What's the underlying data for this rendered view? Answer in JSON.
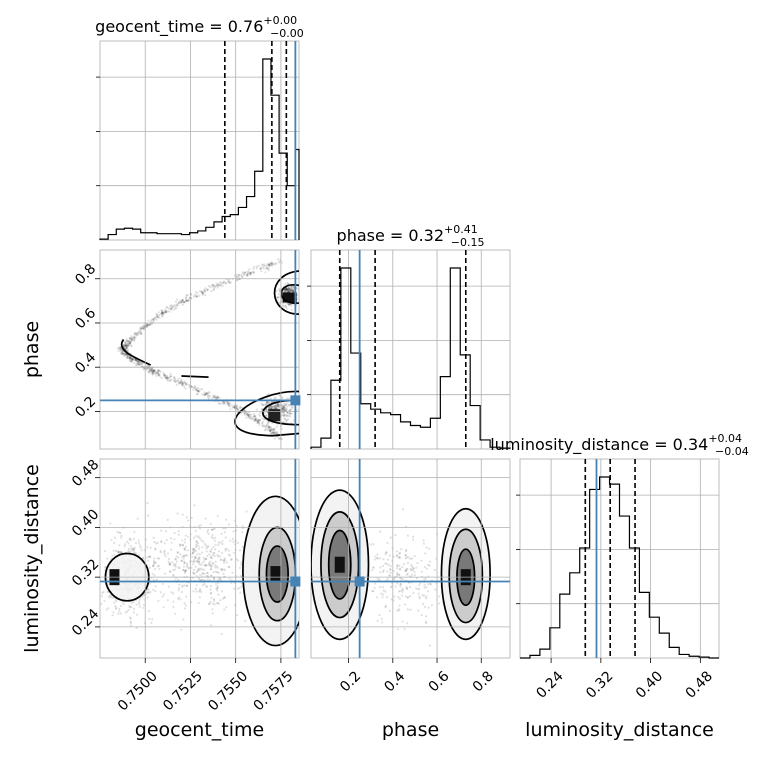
{
  "chart_data": {
    "type": "corner",
    "parameters": [
      {
        "key": "geocent_time",
        "label": "geocent_time",
        "title": "geocent_time = 0.76",
        "title_sup": "+0.00",
        "title_sub": "−0.00",
        "range": [
          0.7475,
          0.7585
        ],
        "ticks": [
          0.75,
          0.7525,
          0.755,
          0.7575
        ],
        "tick_labels": [
          "0.7500",
          "0.7525",
          "0.7550",
          "0.7575"
        ],
        "truth": 0.7583,
        "quantiles": [
          0.7544,
          0.757,
          0.7578
        ]
      },
      {
        "key": "phase",
        "label": "phase",
        "title": "phase = 0.32",
        "title_sup": "+0.41",
        "title_sub": "−0.15",
        "range": [
          0.03,
          0.93
        ],
        "ticks": [
          0.2,
          0.4,
          0.6,
          0.8
        ],
        "tick_labels": [
          "0.2",
          "0.4",
          "0.6",
          "0.8"
        ],
        "truth": 0.25,
        "quantiles": [
          0.16,
          0.32,
          0.73
        ]
      },
      {
        "key": "luminosity_distance",
        "label": "luminosity_distance",
        "title": "luminosity_distance = 0.34",
        "title_sup": "+0.04",
        "title_sub": "−0.04",
        "range": [
          0.19,
          0.51
        ],
        "ticks": [
          0.24,
          0.32,
          0.4,
          0.48
        ],
        "tick_labels": [
          "0.24",
          "0.32",
          "0.40",
          "0.48"
        ],
        "truth": 0.313,
        "quantiles": [
          0.295,
          0.335,
          0.375
        ]
      }
    ],
    "histograms": [
      {
        "param": "geocent_time",
        "edges": [
          0.7475,
          0.74795,
          0.7484,
          0.74885,
          0.7493,
          0.74975,
          0.7502,
          0.75065,
          0.7511,
          0.75155,
          0.752,
          0.75245,
          0.7529,
          0.75335,
          0.7538,
          0.75425,
          0.7547,
          0.75515,
          0.7556,
          0.75605,
          0.7565,
          0.75695,
          0.7574,
          0.75785,
          0.7583,
          0.7585
        ],
        "counts": [
          0.5,
          3,
          6,
          6.5,
          6,
          4,
          4,
          3.5,
          3.5,
          3.5,
          3,
          4,
          5,
          7,
          10,
          13,
          14,
          18,
          24,
          38,
          100,
          80,
          48,
          30,
          50
        ]
      },
      {
        "param": "phase",
        "edges": [
          0.03,
          0.075,
          0.12,
          0.165,
          0.21,
          0.255,
          0.3,
          0.345,
          0.39,
          0.435,
          0.48,
          0.525,
          0.57,
          0.615,
          0.66,
          0.705,
          0.75,
          0.795,
          0.84,
          0.885,
          0.93
        ],
        "counts": [
          1,
          6,
          38,
          100,
          53,
          25,
          22,
          20,
          19,
          15,
          13,
          12,
          17,
          40,
          100,
          52,
          24,
          5,
          1,
          0.5
        ]
      },
      {
        "param": "luminosity_distance",
        "edges": [
          0.19,
          0.206,
          0.222,
          0.238,
          0.254,
          0.27,
          0.286,
          0.302,
          0.318,
          0.334,
          0.35,
          0.366,
          0.382,
          0.398,
          0.414,
          0.43,
          0.446,
          0.462,
          0.478,
          0.494,
          0.51
        ],
        "counts": [
          0,
          1.5,
          5,
          17,
          36,
          48,
          62,
          95,
          102,
          98,
          80,
          62,
          37,
          23,
          14,
          6,
          2,
          1,
          0.5,
          0
        ]
      }
    ],
    "scatter_density": [
      {
        "x": "geocent_time",
        "y": "phase",
        "description_free": true,
        "sample_paths": [
          [
            [
              0.7575,
              0.88
            ],
            [
              0.7555,
              0.82
            ],
            [
              0.7525,
              0.72
            ],
            [
              0.7505,
              0.62
            ],
            [
              0.7492,
              0.52
            ],
            [
              0.7487,
              0.48
            ],
            [
              0.7492,
              0.44
            ],
            [
              0.7505,
              0.38
            ],
            [
              0.7525,
              0.31
            ],
            [
              0.7545,
              0.24
            ],
            [
              0.7562,
              0.16
            ],
            [
              0.7575,
              0.08
            ]
          ]
        ],
        "core_points": [
          [
            0.7579,
            0.725
          ],
          [
            0.7572,
            0.2
          ]
        ]
      },
      {
        "x": "geocent_time",
        "y": "luminosity_distance",
        "core_points": [
          [
            0.7572,
            0.325
          ],
          [
            0.7483,
            0.32
          ]
        ]
      },
      {
        "x": "phase",
        "y": "luminosity_distance",
        "core_points": [
          [
            0.16,
            0.34
          ],
          [
            0.73,
            0.32
          ]
        ]
      }
    ]
  }
}
